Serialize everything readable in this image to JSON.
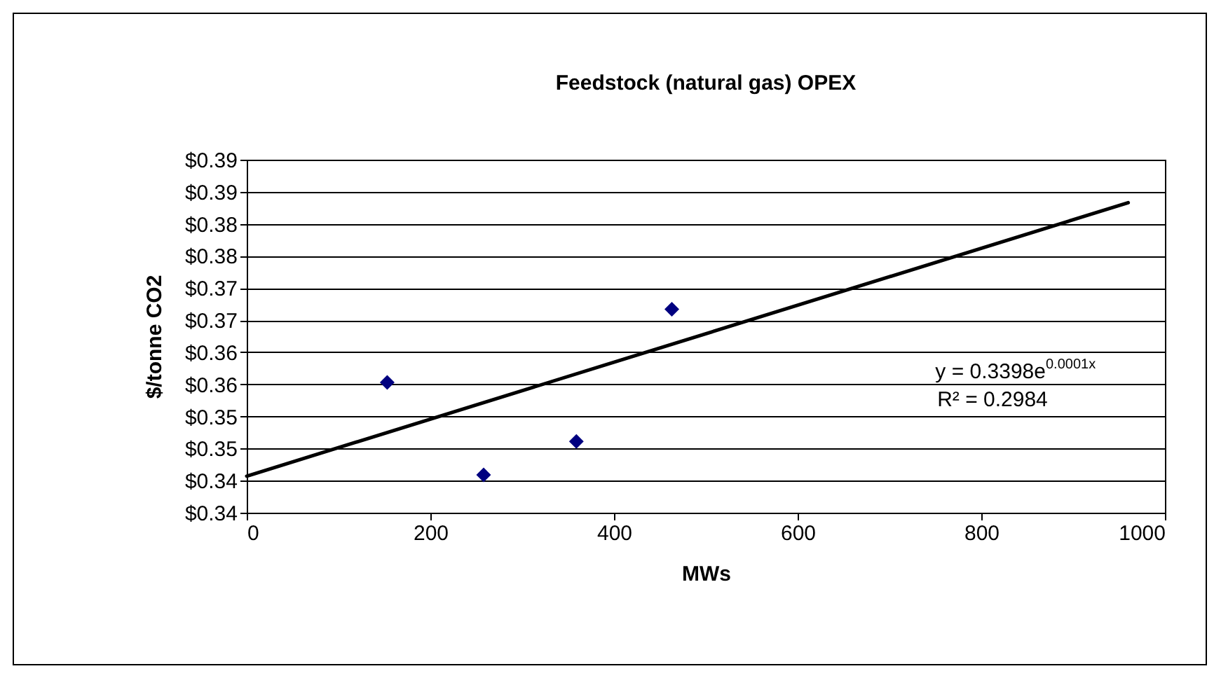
{
  "chart_data": {
    "type": "scatter",
    "title": "Feedstock (natural gas) OPEX",
    "xlabel": "MWs",
    "ylabel": "$/tonne CO2",
    "x": [
      153,
      258,
      359,
      463
    ],
    "series": [
      {
        "color": "#000080",
        "marker": "diamond",
        "values": [
          0.3578,
          0.3434,
          0.3486,
          0.3692
        ]
      },
      {
        "type": "line",
        "color": "#000000",
        "x": [
          0,
          960
        ],
        "values": [
          0.3432,
          0.3858
        ]
      }
    ],
    "xlim": [
      0,
      1000
    ],
    "xticks": [
      0,
      200,
      400,
      600,
      800,
      1000
    ],
    "ylim": [
      0.3375,
      0.3925
    ],
    "yticks": [
      {
        "value": 0.3375,
        "label": "$0.34"
      },
      {
        "value": 0.3425,
        "label": "$0.34"
      },
      {
        "value": 0.3475,
        "label": "$0.35"
      },
      {
        "value": 0.3525,
        "label": "$0.35"
      },
      {
        "value": 0.3575,
        "label": "$0.36"
      },
      {
        "value": 0.3625,
        "label": "$0.36"
      },
      {
        "value": 0.3675,
        "label": "$0.37"
      },
      {
        "value": 0.3725,
        "label": "$0.37"
      },
      {
        "value": 0.3775,
        "label": "$0.38"
      },
      {
        "value": 0.3825,
        "label": "$0.38"
      },
      {
        "value": 0.3875,
        "label": "$0.39"
      },
      {
        "value": 0.3925,
        "label": "$0.39"
      }
    ],
    "grid": "y",
    "annotations": [
      "y = 0.3398e$^{0.0001x}$",
      "R² = 0.2984"
    ]
  }
}
